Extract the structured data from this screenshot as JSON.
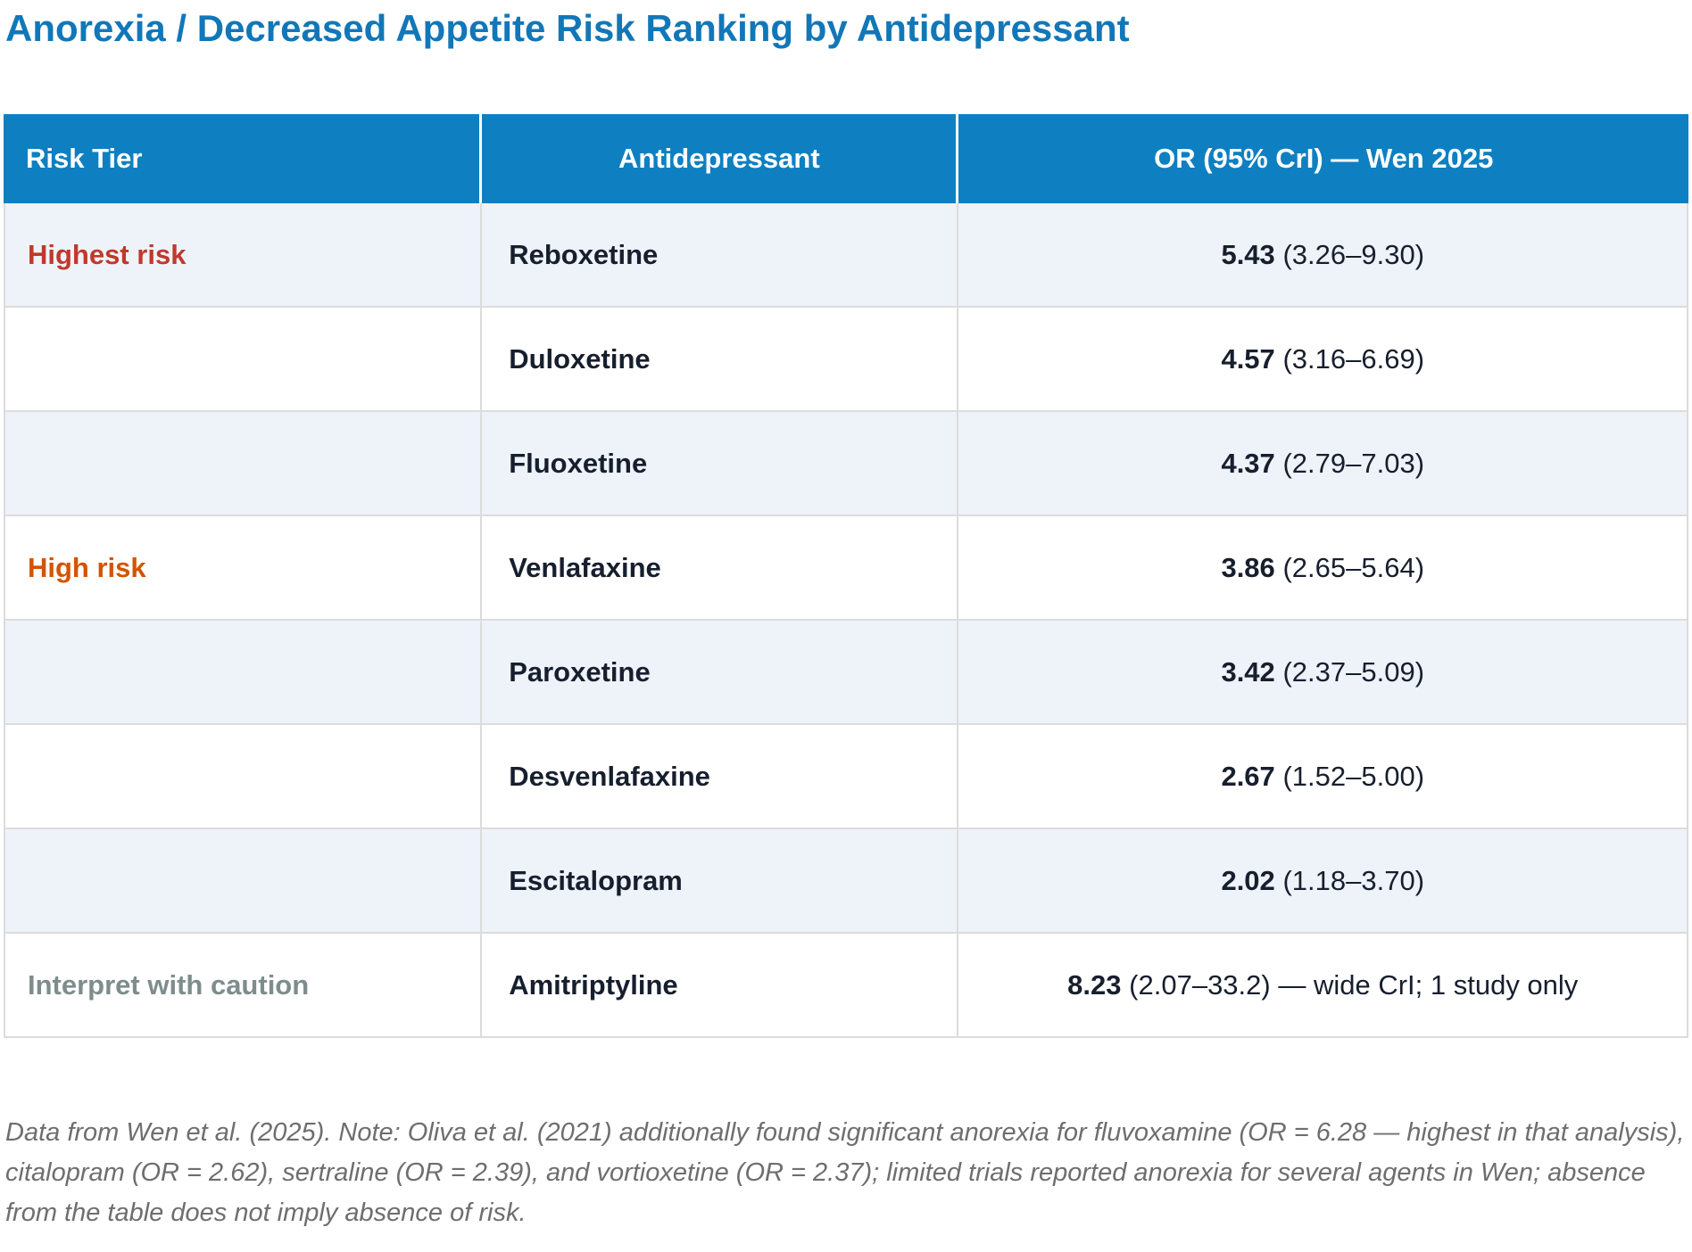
{
  "title": "Anorexia / Decreased Appetite Risk Ranking by Antidepressant",
  "colors": {
    "title_blue": "#1177b8",
    "header_blue": "#0e80c1",
    "row_stripe_blue": "#eef3fa",
    "row_white": "#ffffff",
    "border_gray": "#dcdcdc",
    "body_text": "#171f2e",
    "tier_highest_red": "#c0392b",
    "tier_high_orange": "#d35400",
    "tier_caution_gray": "#7f8c8d",
    "footnote_gray": "#6e6e6e"
  },
  "table": {
    "columns": [
      "Risk Tier",
      "Antidepressant",
      "OR (95% CrI) — Wen 2025"
    ],
    "rows": [
      {
        "tier": "Highest risk",
        "drug": "Reboxetine",
        "or_value": "5.43",
        "or_rest": "(3.26–9.30)"
      },
      {
        "tier": "",
        "drug": "Duloxetine",
        "or_value": "4.57",
        "or_rest": "(3.16–6.69)"
      },
      {
        "tier": "",
        "drug": "Fluoxetine",
        "or_value": "4.37",
        "or_rest": "(2.79–7.03)"
      },
      {
        "tier": "High risk",
        "drug": "Venlafaxine",
        "or_value": "3.86",
        "or_rest": "(2.65–5.64)"
      },
      {
        "tier": "",
        "drug": "Paroxetine",
        "or_value": "3.42",
        "or_rest": "(2.37–5.09)"
      },
      {
        "tier": "",
        "drug": "Desvenlafaxine",
        "or_value": "2.67",
        "or_rest": "(1.52–5.00)"
      },
      {
        "tier": "",
        "drug": "Escitalopram",
        "or_value": "2.02",
        "or_rest": "(1.18–3.70)"
      },
      {
        "tier": "Interpret with caution",
        "drug": "Amitriptyline",
        "or_value": "8.23",
        "or_rest": "(2.07–33.2) — wide CrI; 1 study only"
      }
    ]
  },
  "footnote": "Data from Wen et al. (2025). Note: Oliva et al. (2021) additionally found significant anorexia for fluvoxamine (OR = 6.28 — highest in that analysis), citalopram (OR = 2.62), sertraline (OR = 2.39), and vortioxetine (OR = 2.37); limited trials reported anorexia for several agents in Wen; absence from the table does not imply absence of risk.",
  "chart_data": {
    "type": "table",
    "title": "Anorexia / Decreased Appetite Risk Ranking by Antidepressant",
    "columns": [
      "Risk Tier",
      "Antidepressant",
      "OR (95% CrI) — Wen 2025"
    ],
    "rows": [
      [
        "Highest risk",
        "Reboxetine",
        "5.43 (3.26–9.30)"
      ],
      [
        "",
        "Duloxetine",
        "4.57 (3.16–6.69)"
      ],
      [
        "",
        "Fluoxetine",
        "4.37 (2.79–7.03)"
      ],
      [
        "High risk",
        "Venlafaxine",
        "3.86 (2.65–5.64)"
      ],
      [
        "",
        "Paroxetine",
        "3.42 (2.37–5.09)"
      ],
      [
        "",
        "Desvenlafaxine",
        "2.67 (1.52–5.00)"
      ],
      [
        "",
        "Escitalopram",
        "2.02 (1.18–3.70)"
      ],
      [
        "Interpret with caution",
        "Amitriptyline",
        "8.23 (2.07–33.2) — wide CrI; 1 study only"
      ]
    ],
    "data": [
      {
        "drug": "Reboxetine",
        "tier": "Highest risk",
        "or": 5.43,
        "ci_low": 3.26,
        "ci_high": 9.3
      },
      {
        "drug": "Duloxetine",
        "tier": "Highest risk",
        "or": 4.57,
        "ci_low": 3.16,
        "ci_high": 6.69
      },
      {
        "drug": "Fluoxetine",
        "tier": "Highest risk",
        "or": 4.37,
        "ci_low": 2.79,
        "ci_high": 7.03
      },
      {
        "drug": "Venlafaxine",
        "tier": "High risk",
        "or": 3.86,
        "ci_low": 2.65,
        "ci_high": 5.64
      },
      {
        "drug": "Paroxetine",
        "tier": "High risk",
        "or": 3.42,
        "ci_low": 2.37,
        "ci_high": 5.09
      },
      {
        "drug": "Desvenlafaxine",
        "tier": "High risk",
        "or": 2.67,
        "ci_low": 1.52,
        "ci_high": 5.0
      },
      {
        "drug": "Escitalopram",
        "tier": "High risk",
        "or": 2.02,
        "ci_low": 1.18,
        "ci_high": 3.7
      },
      {
        "drug": "Amitriptyline",
        "tier": "Interpret with caution",
        "or": 8.23,
        "ci_low": 2.07,
        "ci_high": 33.2,
        "note": "wide CrI; 1 study only"
      }
    ]
  }
}
